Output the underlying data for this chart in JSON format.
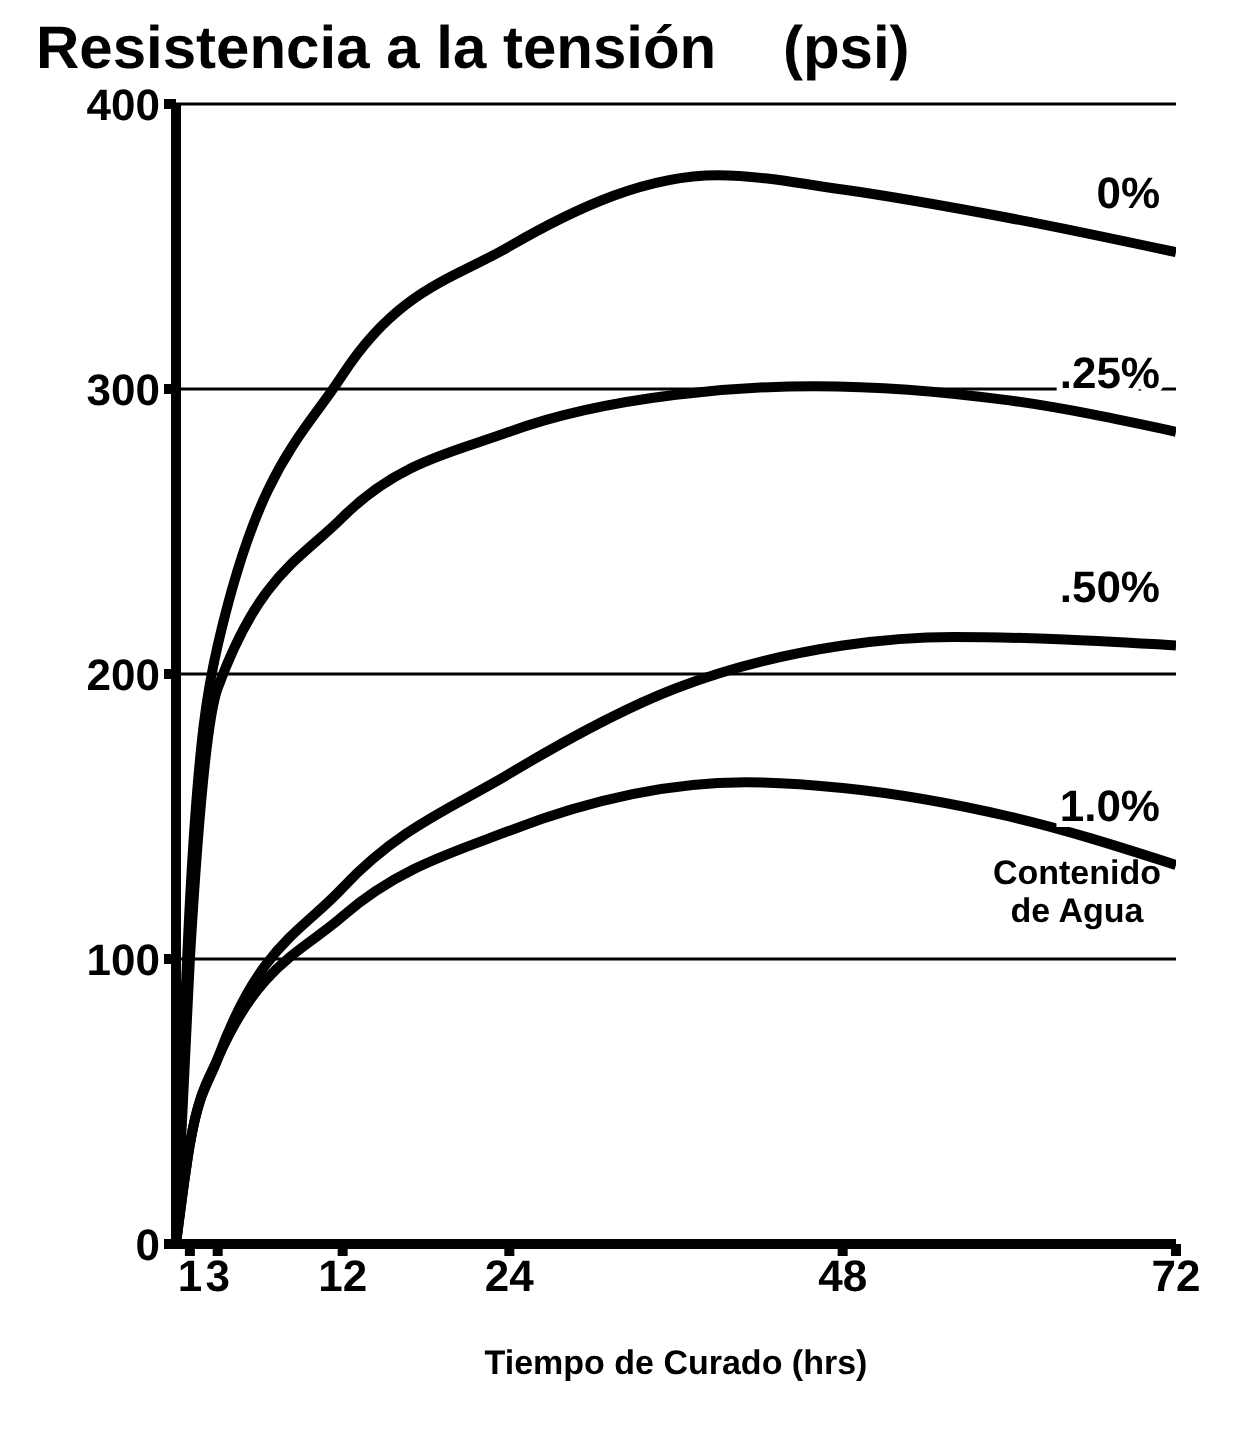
{
  "chart_data": {
    "type": "line",
    "title": "Resistencia a la tensión    (psi)",
    "xlabel": "Tiempo de Curado (hrs)",
    "legend_title": "Contenido de Agua",
    "series": [
      {
        "name": "0%",
        "color": "#000000",
        "x": [
          0,
          1,
          3,
          12,
          24,
          39,
          48,
          60,
          72
        ],
        "values": [
          0,
          120,
          210,
          305,
          350,
          375,
          370,
          360,
          348
        ]
      },
      {
        "name": ".25%",
        "color": "#000000",
        "x": [
          0,
          1,
          3,
          12,
          24,
          36,
          46,
          60,
          72
        ],
        "values": [
          0,
          100,
          195,
          255,
          285,
          298,
          301,
          296,
          285
        ]
      },
      {
        "name": ".50%",
        "color": "#000000",
        "x": [
          0,
          1,
          3,
          12,
          24,
          36,
          48,
          56,
          72
        ],
        "values": [
          0,
          35,
          65,
          125,
          165,
          195,
          210,
          213,
          210
        ]
      },
      {
        "name": "1.0%",
        "color": "#000000",
        "x": [
          0,
          1,
          3,
          12,
          24,
          41,
          48,
          60,
          72
        ],
        "values": [
          0,
          35,
          65,
          115,
          145,
          162,
          160,
          150,
          133
        ]
      }
    ],
    "xlim": [
      0,
      72
    ],
    "xticks": [
      1,
      3,
      12,
      24,
      48,
      72
    ],
    "ylim": [
      0,
      400
    ],
    "yticks": [
      0,
      100,
      200,
      300,
      400
    ],
    "grid": "y",
    "marker": "none",
    "line_style": "solid"
  }
}
